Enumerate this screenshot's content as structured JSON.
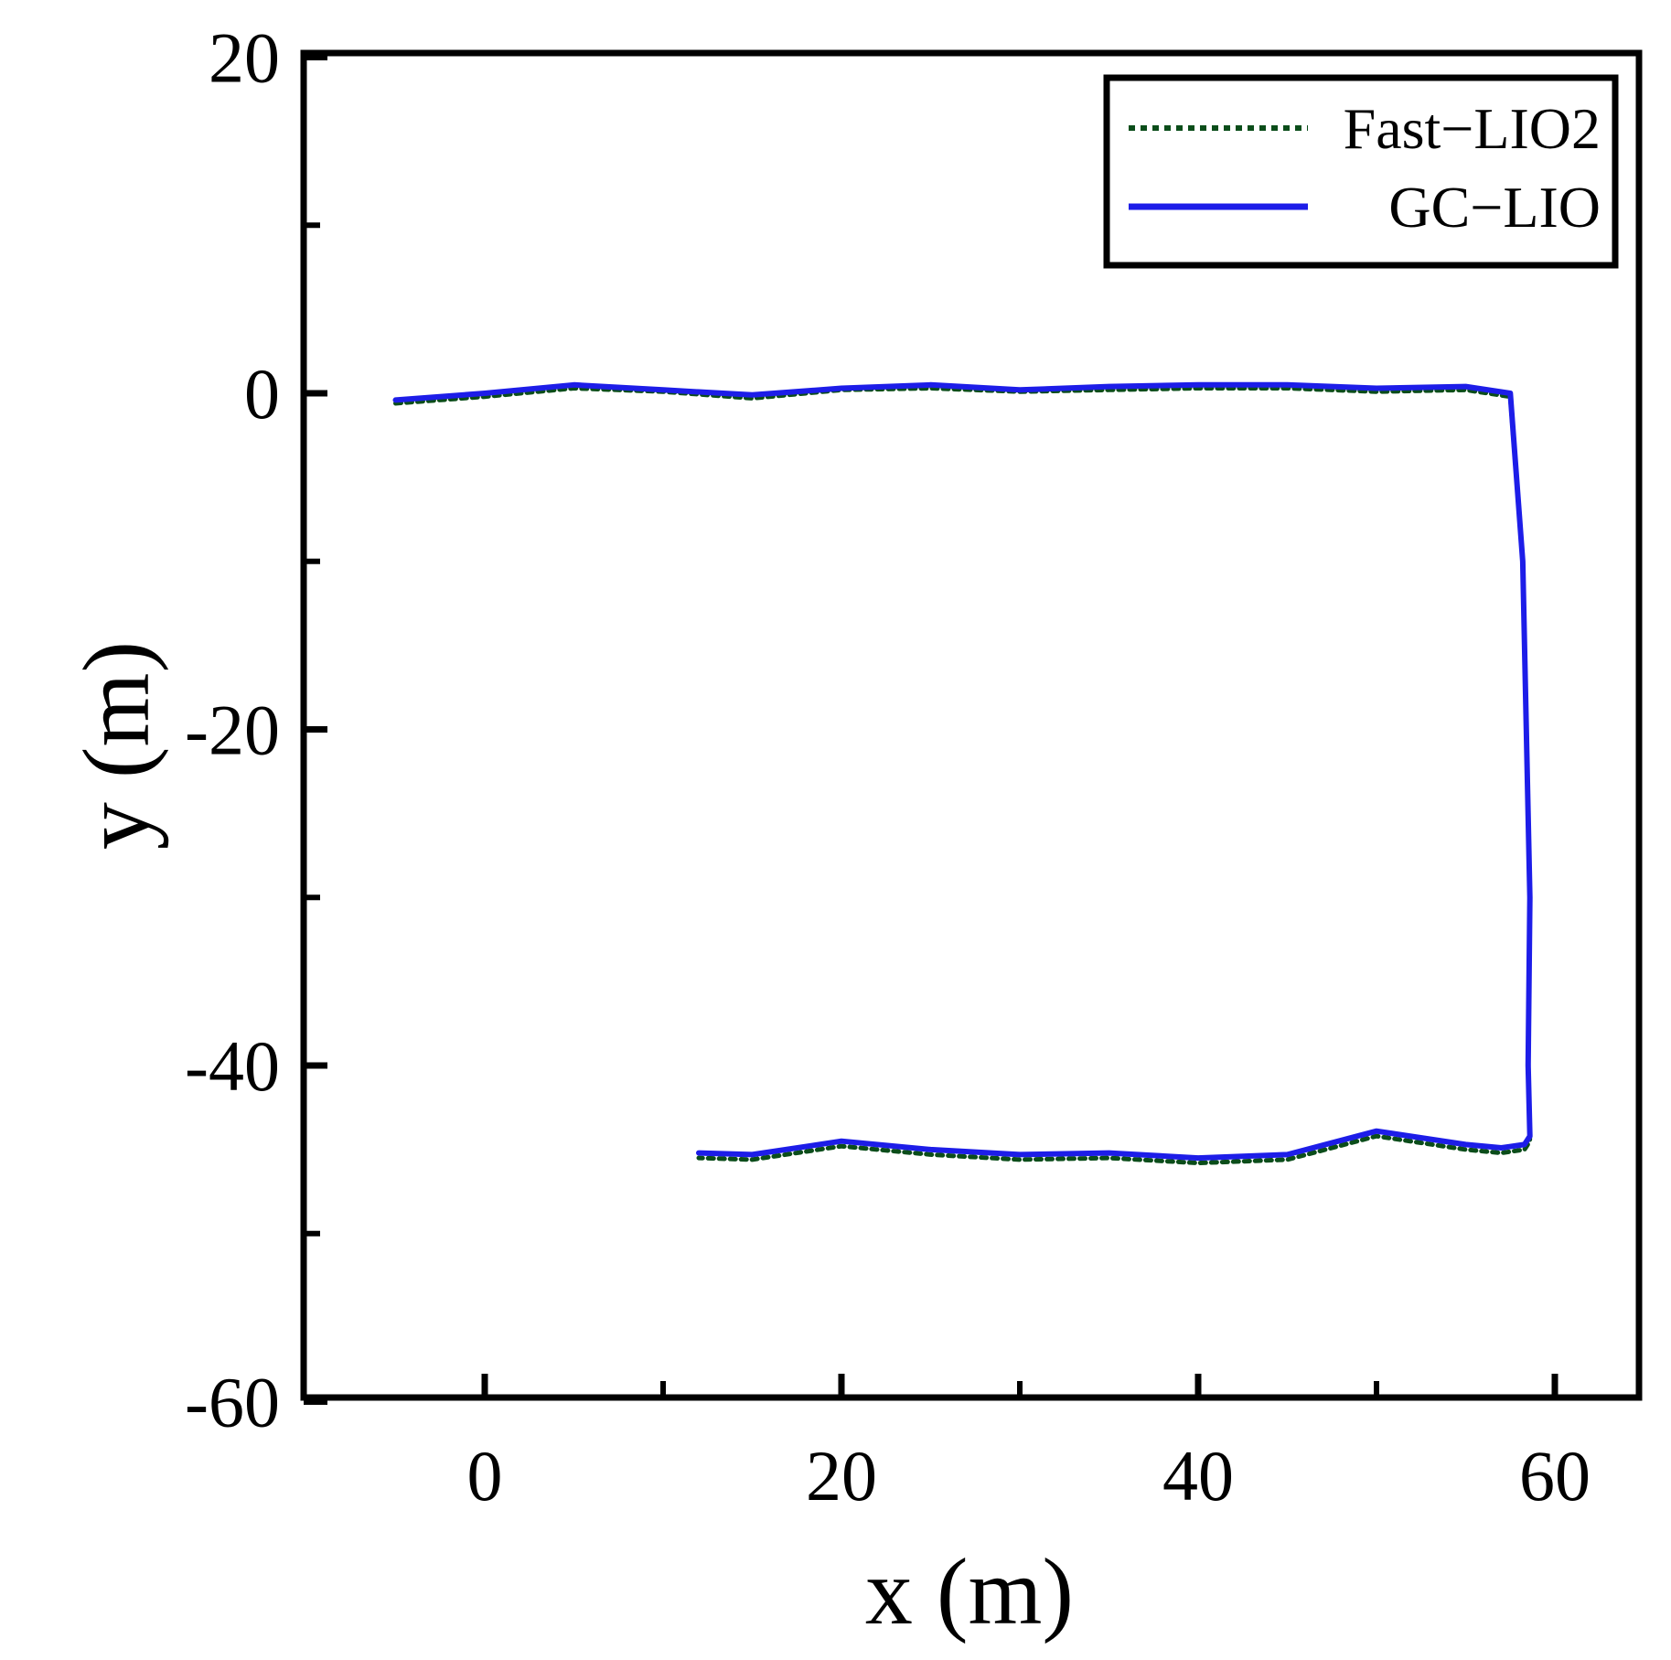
{
  "chart_data": {
    "type": "line",
    "xlabel": "x (m)",
    "ylabel": "y (m)",
    "xlim": [
      -10,
      65
    ],
    "ylim": [
      -60,
      20
    ],
    "x_ticks": [
      {
        "value": 0,
        "label": "0"
      },
      {
        "value": 20,
        "label": "20"
      },
      {
        "value": 40,
        "label": "40"
      },
      {
        "value": 60,
        "label": "60"
      }
    ],
    "x_minor_ticks": [
      10,
      30,
      50
    ],
    "y_ticks": [
      {
        "value": 20,
        "label": "20"
      },
      {
        "value": 0,
        "label": "0"
      },
      {
        "value": -20,
        "label": "-20"
      },
      {
        "value": -40,
        "label": "-40"
      },
      {
        "value": -60,
        "label": "-60"
      }
    ],
    "y_minor_ticks": [
      10,
      -10,
      -30,
      -50
    ],
    "grid": false,
    "legend_position": "top-right",
    "series": [
      {
        "name": "Fast−LIO2",
        "color": "#0b4d1a",
        "style": "dotted",
        "x": [
          -5,
          0,
          5,
          10,
          15,
          20,
          25,
          30,
          35,
          40,
          45,
          50,
          55,
          57.5,
          58.2,
          58.4,
          58.6,
          58.5,
          58.6,
          58.3,
          57,
          55,
          50,
          45,
          40,
          35,
          30,
          25,
          20,
          15,
          12
        ],
        "y": [
          -0.6,
          -0.2,
          0.3,
          0.1,
          -0.3,
          0.2,
          0.3,
          0.1,
          0.2,
          0.3,
          0.3,
          0.1,
          0.2,
          -0.2,
          -10,
          -20,
          -30,
          -40,
          -44.5,
          -45,
          -45.2,
          -45,
          -44.2,
          -45.6,
          -45.8,
          -45.5,
          -45.6,
          -45.3,
          -44.8,
          -45.6,
          -45.5
        ]
      },
      {
        "name": "GC−LIO",
        "color": "#1d1de8",
        "style": "solid",
        "x": [
          -5,
          0,
          5,
          10,
          15,
          20,
          25,
          30,
          35,
          40,
          45,
          50,
          55,
          57.5,
          58.2,
          58.4,
          58.6,
          58.5,
          58.6,
          58.3,
          57,
          55,
          50,
          45,
          40,
          35,
          30,
          25,
          20,
          15,
          12
        ],
        "y": [
          -0.4,
          0.0,
          0.5,
          0.2,
          -0.1,
          0.3,
          0.5,
          0.2,
          0.4,
          0.5,
          0.5,
          0.3,
          0.4,
          0.0,
          -10,
          -20,
          -30,
          -40,
          -44.2,
          -44.7,
          -44.9,
          -44.7,
          -43.9,
          -45.3,
          -45.5,
          -45.2,
          -45.3,
          -45.0,
          -44.5,
          -45.3,
          -45.2
        ]
      }
    ]
  }
}
